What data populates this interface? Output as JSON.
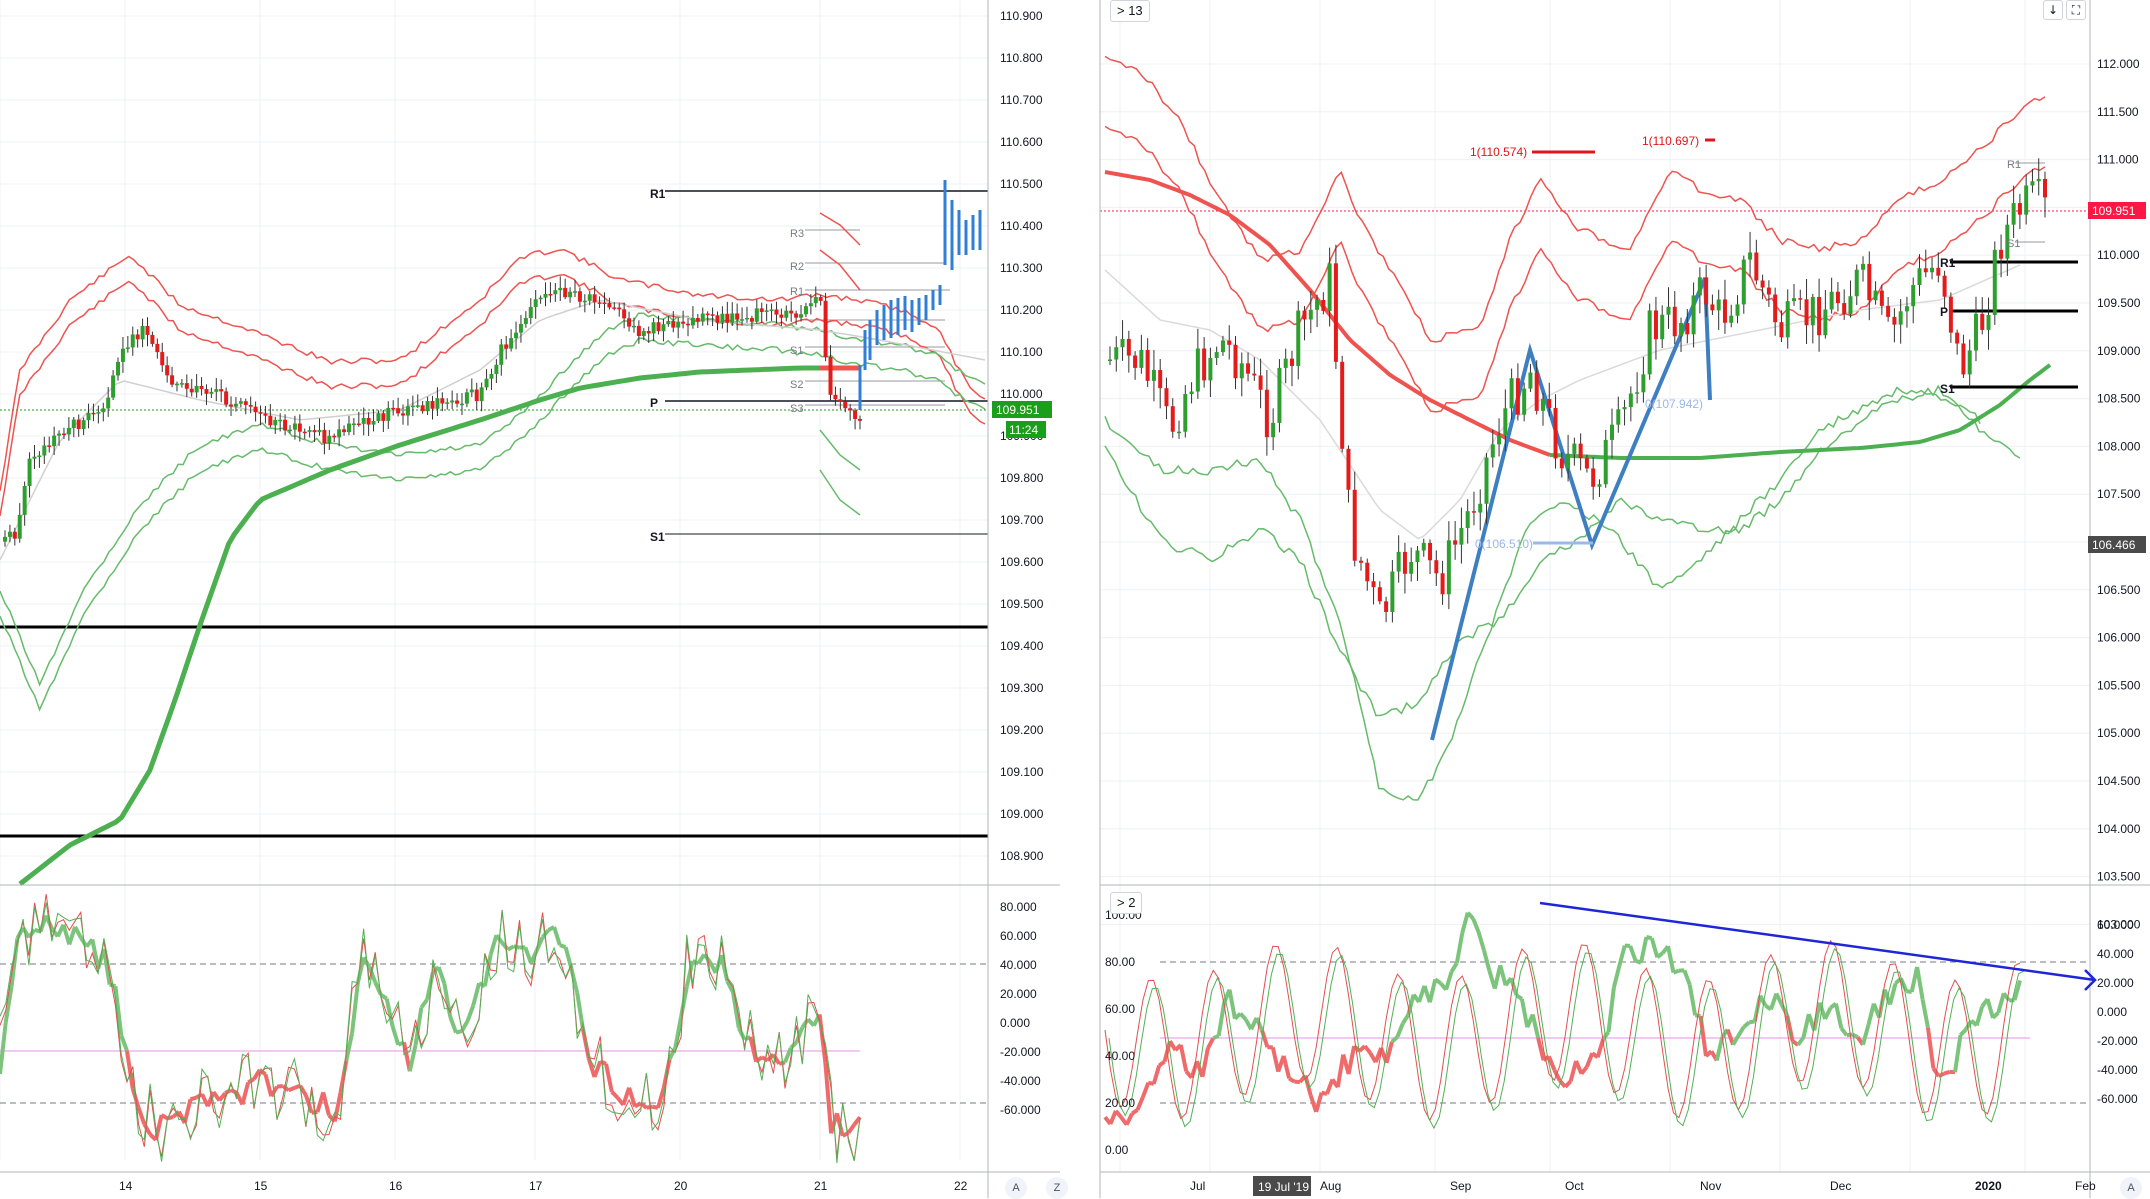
{
  "colors": {
    "up": "#26a69a",
    "down": "#ef5350",
    "bb_red": "#ef5350",
    "bb_green": "#66bb6a",
    "ma_green": "#4caf50",
    "ma_red": "#ef5350",
    "zigzag": "#3d7fc1",
    "pivot": "#131722",
    "trendline": "#1e26d8",
    "price_tag": "#ff1744",
    "price_tag_green": "#1b9e1b",
    "crosshair_tag": "#4a4a4a"
  },
  "left_chart": {
    "price_axis": [
      "110.900",
      "110.800",
      "110.700",
      "110.600",
      "110.500",
      "110.400",
      "110.300",
      "110.200",
      "110.100",
      "110.000",
      "109.900",
      "109.800",
      "109.700",
      "109.600",
      "109.500",
      "109.400",
      "109.300",
      "109.200",
      "109.100",
      "109.000",
      "108.900"
    ],
    "price_tag": "109.951",
    "countdown_tag": "11:24",
    "pivot_labels": {
      "r1": "R1",
      "p": "P",
      "s1": "S1"
    },
    "intraday_labels": [
      "R3",
      "R2",
      "R1",
      "S1",
      "S2",
      "S3"
    ],
    "time_axis": [
      "14",
      "15",
      "16",
      "17",
      "20",
      "21",
      "22"
    ],
    "osc_axis": [
      "80.000",
      "60.000",
      "40.000",
      "20.000",
      "0.000",
      "-20.000",
      "-40.000",
      "-60.000"
    ],
    "corner_a": "A"
  },
  "right_chart": {
    "legend_button": "> 13",
    "price_axis": [
      "112.000",
      "111.500",
      "111.000",
      "110.500",
      "110.000",
      "109.500",
      "109.000",
      "108.500",
      "108.000",
      "107.500",
      "107.000",
      "106.500",
      "106.000",
      "105.500",
      "105.000",
      "104.500",
      "104.000",
      "103.500",
      "103.000"
    ],
    "price_tag": "109.951",
    "crosshair_tag": "106.466",
    "fib_labels": [
      "1(110.574)",
      "1(110.697)"
    ],
    "zigzag_labels": [
      "0(107.942)",
      "0(106.510)"
    ],
    "pivot_labels": {
      "r1": "R1",
      "p": "P",
      "s1": "S1"
    },
    "small_labels": [
      "R1",
      "S1"
    ],
    "time_axis": [
      "Jul",
      "Aug",
      "Sep",
      "Oct",
      "Nov",
      "Dec",
      "2020",
      "Feb"
    ],
    "time_cursor": "19 Jul '19",
    "osc_legend_button": "> 2",
    "osc_left_axis": [
      "100.00",
      "80.00",
      "60.00",
      "40.00",
      "20.00",
      "0.00"
    ],
    "osc_right_axis": [
      "60.000",
      "40.000",
      "20.000",
      "0.000",
      "-20.000",
      "-40.000",
      "-60.000"
    ],
    "corner_z": "Z",
    "corner_a": "A",
    "tools": {
      "down_icon": "↓",
      "expand_icon": "⛶"
    }
  }
}
